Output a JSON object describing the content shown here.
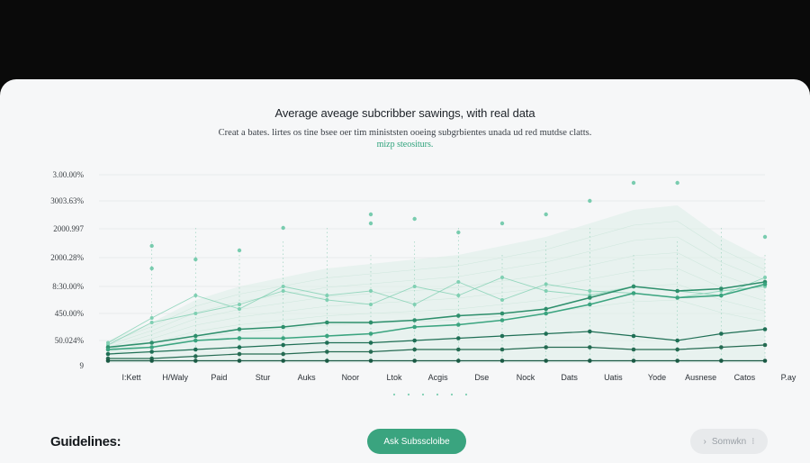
{
  "header": {
    "title": "Average aveage subcribber sawings, with real data",
    "subtitle": "Creat a bates. lirtes os tine bsee oer tim ministsten ooeing subgrbientes unada ud red mutdse clatts.",
    "subtitle2": "mizp steositurs."
  },
  "footer": {
    "guidelines_label": "Guidelines:",
    "primary_button": "Ask Subsscloibe",
    "secondary_button": "Somwkn",
    "secondary_prefix_icon": "chevron-right-icon",
    "secondary_suffix": "⁝"
  },
  "colors": {
    "accent": "#3aa47f",
    "dark_series": "#1f6f55",
    "light_series": "#7fcfb2"
  },
  "chart_data": {
    "type": "line",
    "categories": [
      "I:Kett",
      "H/Waly",
      "Paid",
      "Stur",
      "Auks",
      "Noor",
      "Ltok",
      "Acgis",
      "Dse",
      "Nock",
      "Dats",
      "Uatis",
      "Yode",
      "Ausnese",
      "Catos",
      "P.ay"
    ],
    "ytick_labels": [
      "3.00.00%",
      "3003.63%",
      "2000.997",
      "2000.28%",
      "8:30.00%",
      "450.00%",
      "50.024%",
      "9"
    ],
    "ylim": [
      0,
      3
    ],
    "grid": true,
    "series": [
      {
        "values": [
          0.35,
          0.45,
          0.6,
          0.75,
          0.8,
          0.9,
          0.9,
          0.95,
          1.05,
          1.1,
          1.2,
          1.45,
          1.7,
          1.6,
          1.65,
          1.8
        ]
      },
      {
        "values": [
          0.3,
          0.35,
          0.5,
          0.55,
          0.55,
          0.6,
          0.65,
          0.8,
          0.85,
          0.95,
          1.1,
          1.3,
          1.55,
          1.45,
          1.5,
          1.75
        ]
      },
      {
        "values": [
          0.2,
          0.25,
          0.3,
          0.35,
          0.4,
          0.45,
          0.45,
          0.5,
          0.55,
          0.6,
          0.65,
          0.7,
          0.6,
          0.5,
          0.65,
          0.75
        ]
      },
      {
        "values": [
          0.1,
          0.1,
          0.15,
          0.2,
          0.2,
          0.25,
          0.25,
          0.3,
          0.3,
          0.3,
          0.35,
          0.35,
          0.3,
          0.3,
          0.35,
          0.4
        ]
      },
      {
        "values": [
          0.05,
          0.05,
          0.05,
          0.05,
          0.05,
          0.05,
          0.05,
          0.05,
          0.05,
          0.05,
          0.05,
          0.05,
          0.05,
          0.05,
          0.05,
          0.05
        ]
      }
    ],
    "light_series": [
      {
        "values": [
          0.4,
          0.9,
          1.1,
          1.3,
          1.6,
          1.4,
          1.3,
          1.7,
          1.5,
          1.9,
          1.6,
          1.5,
          1.7,
          1.6,
          1.5,
          1.9
        ]
      },
      {
        "values": [
          0.45,
          1.0,
          1.5,
          1.2,
          1.7,
          1.5,
          1.6,
          1.3,
          1.8,
          1.4,
          1.75,
          1.6,
          1.55,
          1.45,
          1.6,
          1.7
        ]
      }
    ],
    "area_upper": [
      0.5,
      0.9,
      1.4,
      1.7,
      1.9,
      2.1,
      2.2,
      2.3,
      2.4,
      2.6,
      2.8,
      3.1,
      3.4,
      3.5,
      2.8,
      2.3
    ],
    "scatter_top": [
      [
        1,
        2.1
      ],
      [
        1,
        2.6
      ],
      [
        2,
        2.3
      ],
      [
        3,
        2.5
      ],
      [
        4,
        3.0
      ],
      [
        6,
        3.1
      ],
      [
        6,
        3.3
      ],
      [
        7,
        3.2
      ],
      [
        8,
        2.9
      ],
      [
        9,
        3.1
      ],
      [
        10,
        3.3
      ],
      [
        11,
        3.6
      ],
      [
        12,
        4.0
      ],
      [
        13,
        4.0
      ],
      [
        15,
        2.8
      ]
    ]
  }
}
